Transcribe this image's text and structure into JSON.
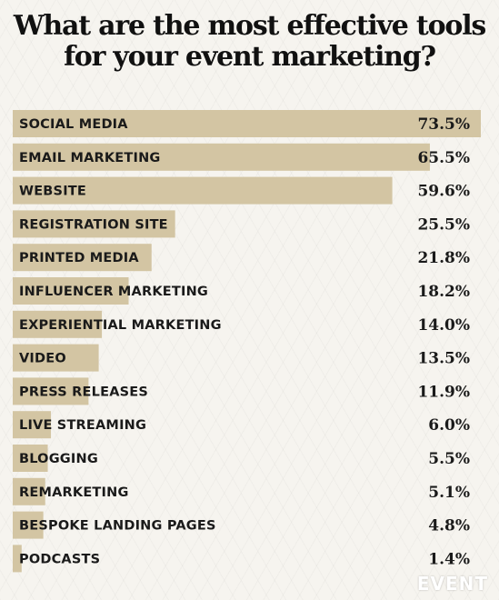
{
  "title_lines": [
    "What are the most effective tools",
    "for your event marketing?"
  ],
  "logo_text": "EVENT",
  "colors": {
    "bar": "#d3c5a3",
    "text": "#1a1a1a",
    "background": "#f6f4ef"
  },
  "chart_data": {
    "type": "bar",
    "orientation": "horizontal",
    "title": "What are the most effective tools for your event marketing?",
    "categories": [
      "SOCIAL MEDIA",
      "EMAIL MARKETING",
      "WEBSITE",
      "REGISTRATION SITE",
      "PRINTED MEDIA",
      "INFLUENCER MARKETING",
      "EXPERIENTIAL MARKETING",
      "VIDEO",
      "PRESS RELEASES",
      "LIVE STREAMING",
      "BLOGGING",
      "REMARKETING",
      "BESPOKE LANDING PAGES",
      "PODCASTS"
    ],
    "values": [
      73.5,
      65.5,
      59.6,
      25.5,
      21.8,
      18.2,
      14.0,
      13.5,
      11.9,
      6.0,
      5.5,
      5.1,
      4.8,
      1.4
    ],
    "value_labels": [
      "73.5%",
      "65.5%",
      "59.6%",
      "25.5%",
      "21.8%",
      "18.2%",
      "14.0%",
      "13.5%",
      "11.9%",
      "6.0%",
      "5.5%",
      "5.1%",
      "4.8%",
      "1.4%"
    ],
    "xlim": [
      0,
      73.5
    ],
    "unit": "%",
    "grid": false,
    "legend": "none"
  }
}
